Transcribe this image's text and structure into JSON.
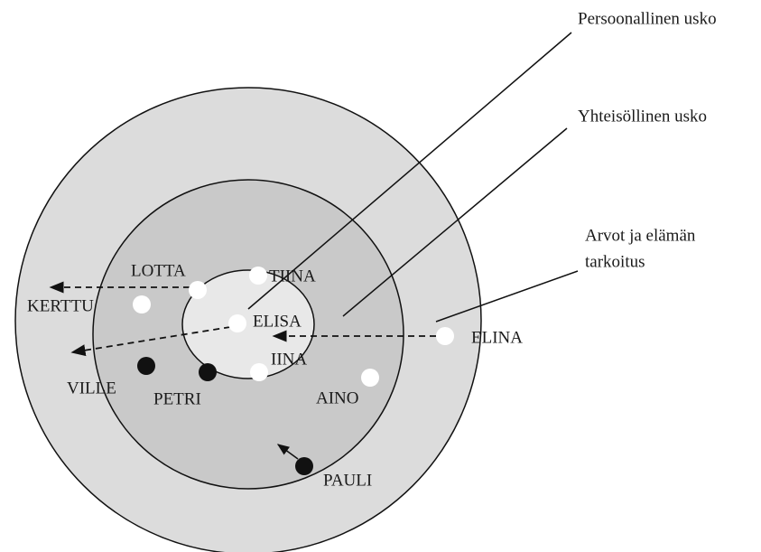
{
  "labels": [
    "Persoonallinen usko",
    "Yhteisöllinen usko",
    "Arvot ja elämän",
    "tarkoitus"
  ],
  "nodes": [
    {
      "label": "LOTTA"
    },
    {
      "label": "TIINA"
    },
    {
      "label": "KERTTU"
    },
    {
      "label": "ELISA"
    },
    {
      "label": "IINA"
    },
    {
      "label": "AINO"
    },
    {
      "label": "ELINA"
    },
    {
      "label": "VILLE"
    },
    {
      "label": "PETRI"
    },
    {
      "label": "PAULI"
    }
  ]
}
